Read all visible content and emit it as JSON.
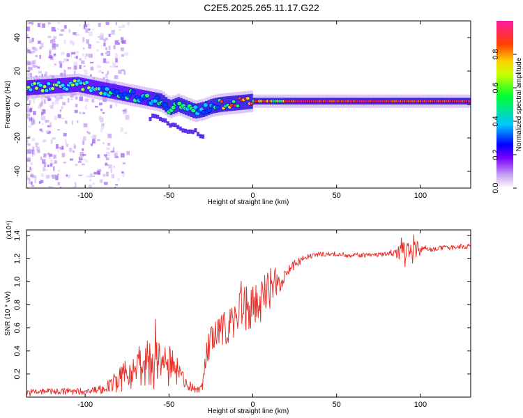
{
  "title": "C2E5.2025.265.11.17.G22",
  "chart_data": [
    {
      "type": "heatmap",
      "name": "spectrogram",
      "xlabel": "Height of straight line (km)",
      "ylabel": "Frequency (Hz)",
      "xlim": [
        -135,
        130
      ],
      "ylim": [
        -50,
        50
      ],
      "xticks": [
        -100,
        -50,
        0,
        50,
        100
      ],
      "yticks": [
        -40,
        -20,
        0,
        20,
        40
      ],
      "colorbar": {
        "label": "Normalized spectral amplitude",
        "range": [
          0,
          1
        ],
        "ticks": [
          0.0,
          0.2,
          0.4,
          0.6,
          0.8
        ],
        "tick_labels": [
          "0.0",
          "0.2",
          "0.4",
          "0.6",
          "0.8"
        ]
      },
      "ridge": {
        "x": [
          -135,
          -120,
          -105,
          -95,
          -85,
          -75,
          -65,
          -55,
          -50,
          -45,
          -40,
          -35,
          -30,
          -25,
          -20,
          -10,
          0,
          10,
          20,
          50,
          80,
          100,
          130
        ],
        "y": [
          10,
          11,
          12,
          10,
          8,
          6,
          4,
          2,
          -2,
          0,
          -2,
          -4,
          -3,
          -1,
          0,
          1,
          2,
          2,
          2,
          2,
          2,
          2,
          2
        ]
      }
    },
    {
      "type": "line",
      "name": "snr",
      "xlabel": "Height of straight line (km)",
      "ylabel": "SNR (10 * v/v)",
      "scale_label": "(x10⁴)",
      "xlim": [
        -135,
        130
      ],
      "ylim": [
        0,
        1.45
      ],
      "xticks": [
        -100,
        -50,
        0,
        50,
        100
      ],
      "yticks": [
        0.2,
        0.4,
        0.6,
        0.8,
        1.0,
        1.2,
        1.4
      ],
      "ytick_labels": [
        "0.2",
        "0.4",
        "0.6",
        "0.8",
        "1.0",
        "1.2",
        "1.4"
      ],
      "color": "#e8302a",
      "series": [
        {
          "name": "SNR",
          "x": [
            -135,
            -120,
            -100,
            -90,
            -85,
            -80,
            -75,
            -70,
            -65,
            -60,
            -58,
            -55,
            -50,
            -45,
            -40,
            -35,
            -32,
            -30,
            -28,
            -25,
            -20,
            -15,
            -10,
            -8,
            -5,
            0,
            5,
            10,
            15,
            20,
            25,
            30,
            35,
            40,
            50,
            60,
            70,
            80,
            85,
            90,
            92,
            95,
            100,
            105,
            110,
            120,
            130
          ],
          "y": [
            0.04,
            0.05,
            0.05,
            0.07,
            0.1,
            0.14,
            0.2,
            0.25,
            0.28,
            0.3,
            0.32,
            0.3,
            0.27,
            0.22,
            0.12,
            0.07,
            0.06,
            0.12,
            0.35,
            0.5,
            0.55,
            0.62,
            0.7,
            0.82,
            0.75,
            0.78,
            0.85,
            0.9,
            1.0,
            1.08,
            1.15,
            1.2,
            1.22,
            1.24,
            1.24,
            1.23,
            1.23,
            1.24,
            1.25,
            1.26,
            1.28,
            1.27,
            1.28,
            1.28,
            1.29,
            1.3,
            1.31
          ],
          "noise": [
            0.03,
            0.03,
            0.03,
            0.04,
            0.06,
            0.1,
            0.14,
            0.16,
            0.2,
            0.22,
            0.3,
            0.2,
            0.18,
            0.12,
            0.06,
            0.03,
            0.03,
            0.06,
            0.12,
            0.14,
            0.14,
            0.16,
            0.2,
            0.25,
            0.22,
            0.2,
            0.2,
            0.22,
            0.12,
            0.06,
            0.04,
            0.03,
            0.02,
            0.02,
            0.02,
            0.02,
            0.02,
            0.02,
            0.03,
            0.12,
            0.18,
            0.12,
            0.05,
            0.03,
            0.02,
            0.02,
            0.02
          ]
        }
      ]
    }
  ]
}
